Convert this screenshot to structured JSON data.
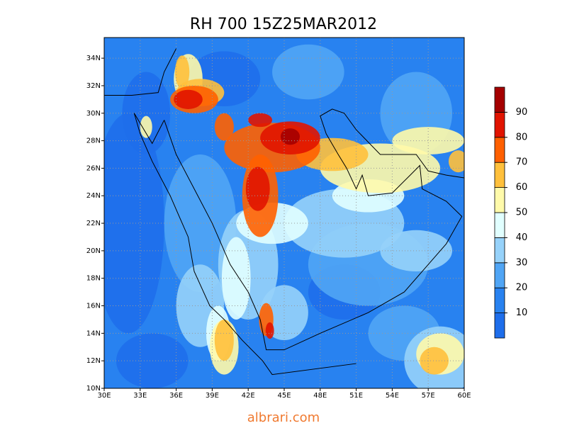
{
  "title": "RH 700 15Z25MAR2012",
  "map": {
    "xlim": [
      30,
      60
    ],
    "ylim": [
      10,
      35.5
    ],
    "xticks": [
      {
        "value": 30,
        "label": "30E"
      },
      {
        "value": 33,
        "label": "33E"
      },
      {
        "value": 36,
        "label": "36E"
      },
      {
        "value": 39,
        "label": "39E"
      },
      {
        "value": 42,
        "label": "42E"
      },
      {
        "value": 45,
        "label": "45E"
      },
      {
        "value": 48,
        "label": "48E"
      },
      {
        "value": 51,
        "label": "51E"
      },
      {
        "value": 54,
        "label": "54E"
      },
      {
        "value": 57,
        "label": "57E"
      },
      {
        "value": 60,
        "label": "60E"
      }
    ],
    "yticks": [
      {
        "value": 10,
        "label": "10N"
      },
      {
        "value": 12,
        "label": "12N"
      },
      {
        "value": 14,
        "label": "14N"
      },
      {
        "value": 16,
        "label": "16N"
      },
      {
        "value": 18,
        "label": "18N"
      },
      {
        "value": 20,
        "label": "20N"
      },
      {
        "value": 22,
        "label": "22N"
      },
      {
        "value": 24,
        "label": "24N"
      },
      {
        "value": 26,
        "label": "26N"
      },
      {
        "value": 28,
        "label": "28N"
      },
      {
        "value": 30,
        "label": "30N"
      },
      {
        "value": 32,
        "label": "32N"
      },
      {
        "value": 34,
        "label": "34N"
      }
    ],
    "grid": true
  },
  "colorbar": {
    "levels": [
      10,
      20,
      30,
      40,
      50,
      60,
      70,
      80,
      90
    ],
    "colors": [
      "#1e6eeb",
      "#2882f0",
      "#50a5f5",
      "#96d2fa",
      "#e1ffff",
      "#fffaaa",
      "#ffc03c",
      "#ff6000",
      "#e11400",
      "#a50000"
    ]
  },
  "footer": "albrari.com"
}
